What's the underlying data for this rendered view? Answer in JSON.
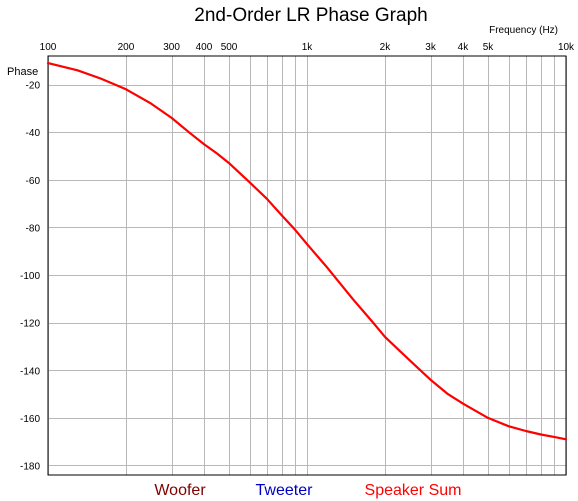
{
  "chart_data": {
    "type": "line",
    "title": "2nd-Order LR Phase Graph",
    "xlabel": "Frequency   (Hz)",
    "ylabel": "Phase",
    "x_scale": "log",
    "xlim": [
      100,
      10000
    ],
    "ylim": [
      -184,
      -8
    ],
    "grid": true,
    "x_tick_values": [
      100,
      200,
      300,
      400,
      500,
      1000,
      2000,
      3000,
      4000,
      5000,
      10000
    ],
    "x_tick_labels": [
      "100",
      "200",
      "300",
      "400",
      "500",
      "1k",
      "2k",
      "3k",
      "4k",
      "5k",
      "10k"
    ],
    "x_minor_grid": [
      600,
      700,
      800,
      900,
      6000,
      7000,
      8000,
      9000
    ],
    "y_ticks": [
      -20,
      -40,
      -60,
      -80,
      -100,
      -120,
      -140,
      -160,
      -180
    ],
    "series": [
      {
        "name": "Speaker Sum",
        "color": "#ff0000",
        "x": [
          100,
          130,
          160,
          200,
          250,
          300,
          350,
          400,
          450,
          500,
          600,
          700,
          800,
          900,
          1000,
          1200,
          1500,
          1800,
          2000,
          2500,
          3000,
          3500,
          4000,
          5000,
          6000,
          7000,
          8000,
          9000,
          10000
        ],
        "y": [
          -11,
          -14,
          -17.5,
          -22,
          -28,
          -34,
          -40,
          -45,
          -49,
          -53,
          -61,
          -68,
          -75,
          -81,
          -87,
          -97,
          -110,
          -120,
          -126,
          -136,
          -144,
          -150,
          -154,
          -160,
          -163.5,
          -165.5,
          -167,
          -168,
          -169
        ]
      }
    ],
    "legend": [
      {
        "name": "Woofer",
        "color": "#800000"
      },
      {
        "name": "Tweeter",
        "color": "#0000c0"
      },
      {
        "name": "Speaker Sum",
        "color": "#ff0000"
      }
    ],
    "legend_position": "bottom"
  }
}
